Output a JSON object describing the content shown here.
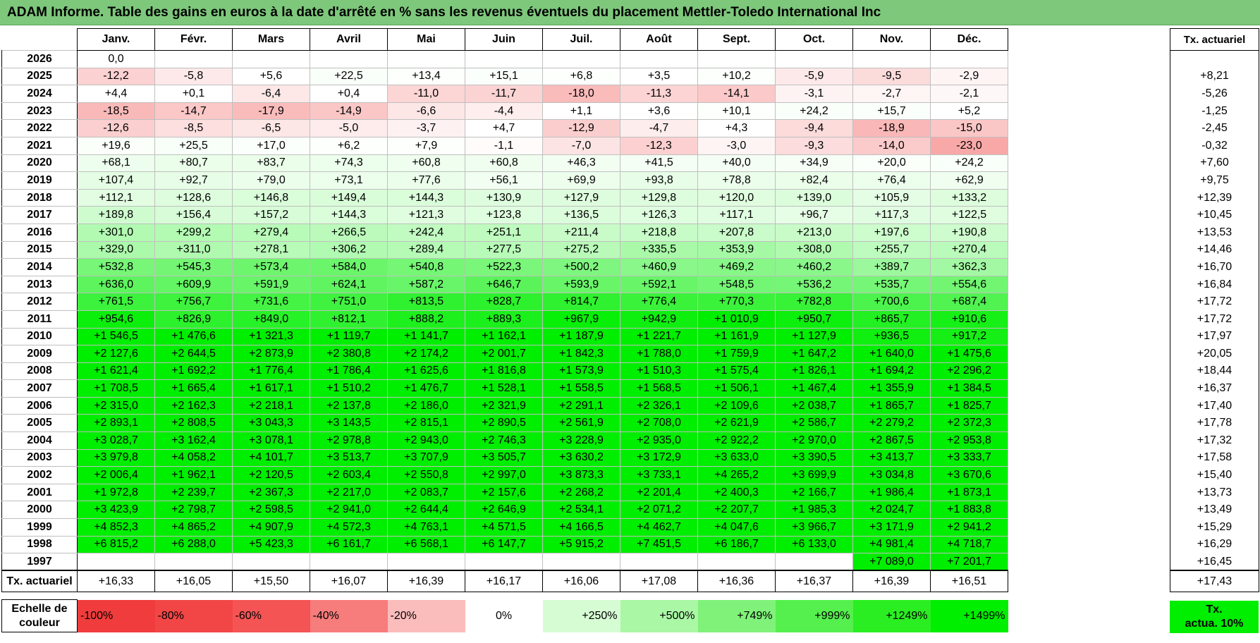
{
  "title": "ADAM Informe. Table des gains en euros à la date d'arrêté en % sans les revenus éventuels du placement Mettler-Toledo International Inc",
  "months": [
    "Janv.",
    "Févr.",
    "Mars",
    "Avril",
    "Mai",
    "Juin",
    "Juil.",
    "Août",
    "Sept.",
    "Oct.",
    "Nov.",
    "Déc."
  ],
  "rate_header": "Tx. actuariel",
  "rows": [
    {
      "year": "2026",
      "values": [
        "0,0",
        "",
        "",
        "",
        "",
        "",
        "",
        "",
        "",
        "",
        "",
        ""
      ],
      "rate": ""
    },
    {
      "year": "2025",
      "values": [
        "-12,2",
        "-5,8",
        "+5,6",
        "+22,5",
        "+13,4",
        "+15,1",
        "+6,8",
        "+3,5",
        "+10,2",
        "-5,9",
        "-9,5",
        "-2,9"
      ],
      "rate": "+8,21"
    },
    {
      "year": "2024",
      "values": [
        "+4,4",
        "+0,1",
        "-6,4",
        "+0,4",
        "-11,0",
        "-11,7",
        "-18,0",
        "-11,3",
        "-14,1",
        "-3,1",
        "-2,7",
        "-2,1"
      ],
      "rate": "-5,26"
    },
    {
      "year": "2023",
      "values": [
        "-18,5",
        "-14,7",
        "-17,9",
        "-14,9",
        "-6,6",
        "-4,4",
        "+1,1",
        "+3,6",
        "+10,1",
        "+24,2",
        "+15,7",
        "+5,2"
      ],
      "rate": "-1,25"
    },
    {
      "year": "2022",
      "values": [
        "-12,6",
        "-8,5",
        "-6,5",
        "-5,0",
        "-3,7",
        "+4,7",
        "-12,9",
        "-4,7",
        "+4,3",
        "-9,4",
        "-18,9",
        "-15,0"
      ],
      "rate": "-2,45"
    },
    {
      "year": "2021",
      "values": [
        "+19,6",
        "+25,5",
        "+17,0",
        "+6,2",
        "+7,9",
        "-1,1",
        "-7,0",
        "-12,3",
        "-3,0",
        "-9,3",
        "-14,0",
        "-23,0"
      ],
      "rate": "-0,32"
    },
    {
      "year": "2020",
      "values": [
        "+68,1",
        "+80,7",
        "+83,7",
        "+74,3",
        "+60,8",
        "+60,8",
        "+46,3",
        "+41,5",
        "+40,0",
        "+34,9",
        "+20,0",
        "+24,2"
      ],
      "rate": "+7,60"
    },
    {
      "year": "2019",
      "values": [
        "+107,4",
        "+92,7",
        "+79,0",
        "+73,1",
        "+77,6",
        "+56,1",
        "+69,9",
        "+93,8",
        "+78,8",
        "+82,4",
        "+76,4",
        "+62,9"
      ],
      "rate": "+9,75"
    },
    {
      "year": "2018",
      "values": [
        "+112,1",
        "+128,6",
        "+146,8",
        "+149,4",
        "+144,3",
        "+130,9",
        "+127,9",
        "+129,8",
        "+120,0",
        "+139,0",
        "+105,9",
        "+133,2"
      ],
      "rate": "+12,39"
    },
    {
      "year": "2017",
      "values": [
        "+189,8",
        "+156,4",
        "+157,2",
        "+144,3",
        "+121,3",
        "+123,8",
        "+136,5",
        "+126,3",
        "+117,1",
        "+96,7",
        "+117,3",
        "+122,5"
      ],
      "rate": "+10,45"
    },
    {
      "year": "2016",
      "values": [
        "+301,0",
        "+299,2",
        "+279,4",
        "+266,5",
        "+242,4",
        "+251,1",
        "+211,4",
        "+218,8",
        "+207,8",
        "+213,0",
        "+197,6",
        "+190,8"
      ],
      "rate": "+13,53"
    },
    {
      "year": "2015",
      "values": [
        "+329,0",
        "+311,0",
        "+278,1",
        "+306,2",
        "+289,4",
        "+277,5",
        "+275,2",
        "+335,5",
        "+353,9",
        "+308,0",
        "+255,7",
        "+270,4"
      ],
      "rate": "+14,46"
    },
    {
      "year": "2014",
      "values": [
        "+532,8",
        "+545,3",
        "+573,4",
        "+584,0",
        "+540,8",
        "+522,3",
        "+500,2",
        "+460,9",
        "+469,2",
        "+460,2",
        "+389,7",
        "+362,3"
      ],
      "rate": "+16,70"
    },
    {
      "year": "2013",
      "values": [
        "+636,0",
        "+609,9",
        "+591,9",
        "+624,1",
        "+587,2",
        "+646,7",
        "+593,9",
        "+592,1",
        "+548,5",
        "+536,2",
        "+535,7",
        "+554,6"
      ],
      "rate": "+16,84"
    },
    {
      "year": "2012",
      "values": [
        "+761,5",
        "+756,7",
        "+731,6",
        "+751,0",
        "+813,5",
        "+828,7",
        "+814,7",
        "+776,4",
        "+770,3",
        "+782,8",
        "+700,6",
        "+687,4"
      ],
      "rate": "+17,72"
    },
    {
      "year": "2011",
      "values": [
        "+954,6",
        "+826,9",
        "+849,0",
        "+812,1",
        "+888,2",
        "+889,3",
        "+967,9",
        "+942,9",
        "+1 010,9",
        "+950,7",
        "+865,7",
        "+910,6"
      ],
      "rate": "+17,72"
    },
    {
      "year": "2010",
      "values": [
        "+1 546,5",
        "+1 476,6",
        "+1 321,3",
        "+1 119,7",
        "+1 141,7",
        "+1 162,1",
        "+1 187,9",
        "+1 221,7",
        "+1 161,9",
        "+1 127,9",
        "+936,5",
        "+917,2"
      ],
      "rate": "+17,97"
    },
    {
      "year": "2009",
      "values": [
        "+2 127,6",
        "+2 644,5",
        "+2 873,9",
        "+2 380,8",
        "+2 174,2",
        "+2 001,7",
        "+1 842,3",
        "+1 788,0",
        "+1 759,9",
        "+1 647,2",
        "+1 640,0",
        "+1 475,6"
      ],
      "rate": "+20,05"
    },
    {
      "year": "2008",
      "values": [
        "+1 621,4",
        "+1 692,2",
        "+1 776,4",
        "+1 786,4",
        "+1 625,6",
        "+1 816,8",
        "+1 573,9",
        "+1 510,3",
        "+1 575,4",
        "+1 826,1",
        "+1 694,2",
        "+2 296,2"
      ],
      "rate": "+18,44"
    },
    {
      "year": "2007",
      "values": [
        "+1 708,5",
        "+1 665,4",
        "+1 617,1",
        "+1 510,2",
        "+1 476,7",
        "+1 528,1",
        "+1 558,5",
        "+1 568,5",
        "+1 506,1",
        "+1 467,4",
        "+1 355,9",
        "+1 384,5"
      ],
      "rate": "+16,37"
    },
    {
      "year": "2006",
      "values": [
        "+2 315,0",
        "+2 162,3",
        "+2 218,1",
        "+2 137,8",
        "+2 186,0",
        "+2 321,9",
        "+2 291,1",
        "+2 326,1",
        "+2 109,6",
        "+2 038,7",
        "+1 865,7",
        "+1 825,7"
      ],
      "rate": "+17,40"
    },
    {
      "year": "2005",
      "values": [
        "+2 893,1",
        "+2 808,5",
        "+3 043,3",
        "+3 143,5",
        "+2 815,1",
        "+2 890,5",
        "+2 561,9",
        "+2 708,0",
        "+2 621,9",
        "+2 586,7",
        "+2 279,2",
        "+2 372,3"
      ],
      "rate": "+17,78"
    },
    {
      "year": "2004",
      "values": [
        "+3 028,7",
        "+3 162,4",
        "+3 078,1",
        "+2 978,8",
        "+2 943,0",
        "+2 746,3",
        "+3 228,9",
        "+2 935,0",
        "+2 922,2",
        "+2 970,0",
        "+2 867,5",
        "+2 953,8"
      ],
      "rate": "+17,32"
    },
    {
      "year": "2003",
      "values": [
        "+3 979,8",
        "+4 058,2",
        "+4 101,7",
        "+3 513,7",
        "+3 707,9",
        "+3 505,7",
        "+3 630,2",
        "+3 172,9",
        "+3 633,0",
        "+3 390,5",
        "+3 413,7",
        "+3 333,7"
      ],
      "rate": "+17,58"
    },
    {
      "year": "2002",
      "values": [
        "+2 006,4",
        "+1 962,1",
        "+2 120,5",
        "+2 603,4",
        "+2 550,8",
        "+2 997,0",
        "+3 873,3",
        "+3 733,1",
        "+4 265,2",
        "+3 699,9",
        "+3 034,8",
        "+3 670,6"
      ],
      "rate": "+15,40"
    },
    {
      "year": "2001",
      "values": [
        "+1 972,8",
        "+2 239,7",
        "+2 367,3",
        "+2 217,0",
        "+2 083,7",
        "+2 157,6",
        "+2 268,2",
        "+2 201,4",
        "+2 400,3",
        "+2 166,7",
        "+1 986,4",
        "+1 873,1"
      ],
      "rate": "+13,73"
    },
    {
      "year": "2000",
      "values": [
        "+3 423,9",
        "+2 798,7",
        "+2 598,5",
        "+2 941,0",
        "+2 644,4",
        "+2 646,9",
        "+2 534,1",
        "+2 071,2",
        "+2 207,7",
        "+1 985,3",
        "+2 024,7",
        "+1 883,8"
      ],
      "rate": "+13,49"
    },
    {
      "year": "1999",
      "values": [
        "+4 852,3",
        "+4 865,2",
        "+4 907,9",
        "+4 572,3",
        "+4 763,1",
        "+4 571,5",
        "+4 166,5",
        "+4 462,7",
        "+4 047,6",
        "+3 966,7",
        "+3 171,9",
        "+2 941,2"
      ],
      "rate": "+15,29"
    },
    {
      "year": "1998",
      "values": [
        "+6 815,2",
        "+6 288,0",
        "+5 423,3",
        "+6 161,7",
        "+6 568,1",
        "+6 147,7",
        "+5 915,2",
        "+7 451,5",
        "+6 186,7",
        "+6 133,0",
        "+4 981,4",
        "+4 718,7"
      ],
      "rate": "+16,29"
    },
    {
      "year": "1997",
      "values": [
        "",
        "",
        "",
        "",
        "",
        "",
        "",
        "",
        "",
        "",
        "+7 089,0",
        "+7 201,7"
      ],
      "rate": "+16,45"
    }
  ],
  "summary": {
    "label": "Tx. actuariel",
    "values": [
      "+16,33",
      "+16,05",
      "+15,50",
      "+16,07",
      "+16,39",
      "+16,17",
      "+16,06",
      "+17,08",
      "+16,36",
      "+16,37",
      "+16,39",
      "+16,51"
    ],
    "rate": "+17,43"
  },
  "scale": {
    "label_line1": "Echelle de",
    "label_line2": "couleur",
    "items": [
      {
        "text": "-100%",
        "color": "#f03c3c",
        "align": "left"
      },
      {
        "text": "-80%",
        "color": "#f24646",
        "align": "left"
      },
      {
        "text": "-60%",
        "color": "#f45454",
        "align": "left"
      },
      {
        "text": "-40%",
        "color": "#f77c7c",
        "align": "left"
      },
      {
        "text": "-20%",
        "color": "#fbbcbc",
        "align": "left"
      },
      {
        "text": "0%",
        "color": "#ffffff",
        "align": "center"
      },
      {
        "text": "+250%",
        "color": "#d6fcd4",
        "align": "right"
      },
      {
        "text": "+500%",
        "color": "#aaf7a6",
        "align": "right"
      },
      {
        "text": "+749%",
        "color": "#80f27a",
        "align": "right"
      },
      {
        "text": "+999%",
        "color": "#55ef4e",
        "align": "right"
      },
      {
        "text": "+1249%",
        "color": "#2aee22",
        "align": "right"
      },
      {
        "text": "+1499%",
        "color": "#00ee00",
        "align": "right"
      }
    ],
    "rate_line1": "Tx.",
    "rate_line2": "actua. 10%",
    "rate_color": "#00ee00"
  }
}
